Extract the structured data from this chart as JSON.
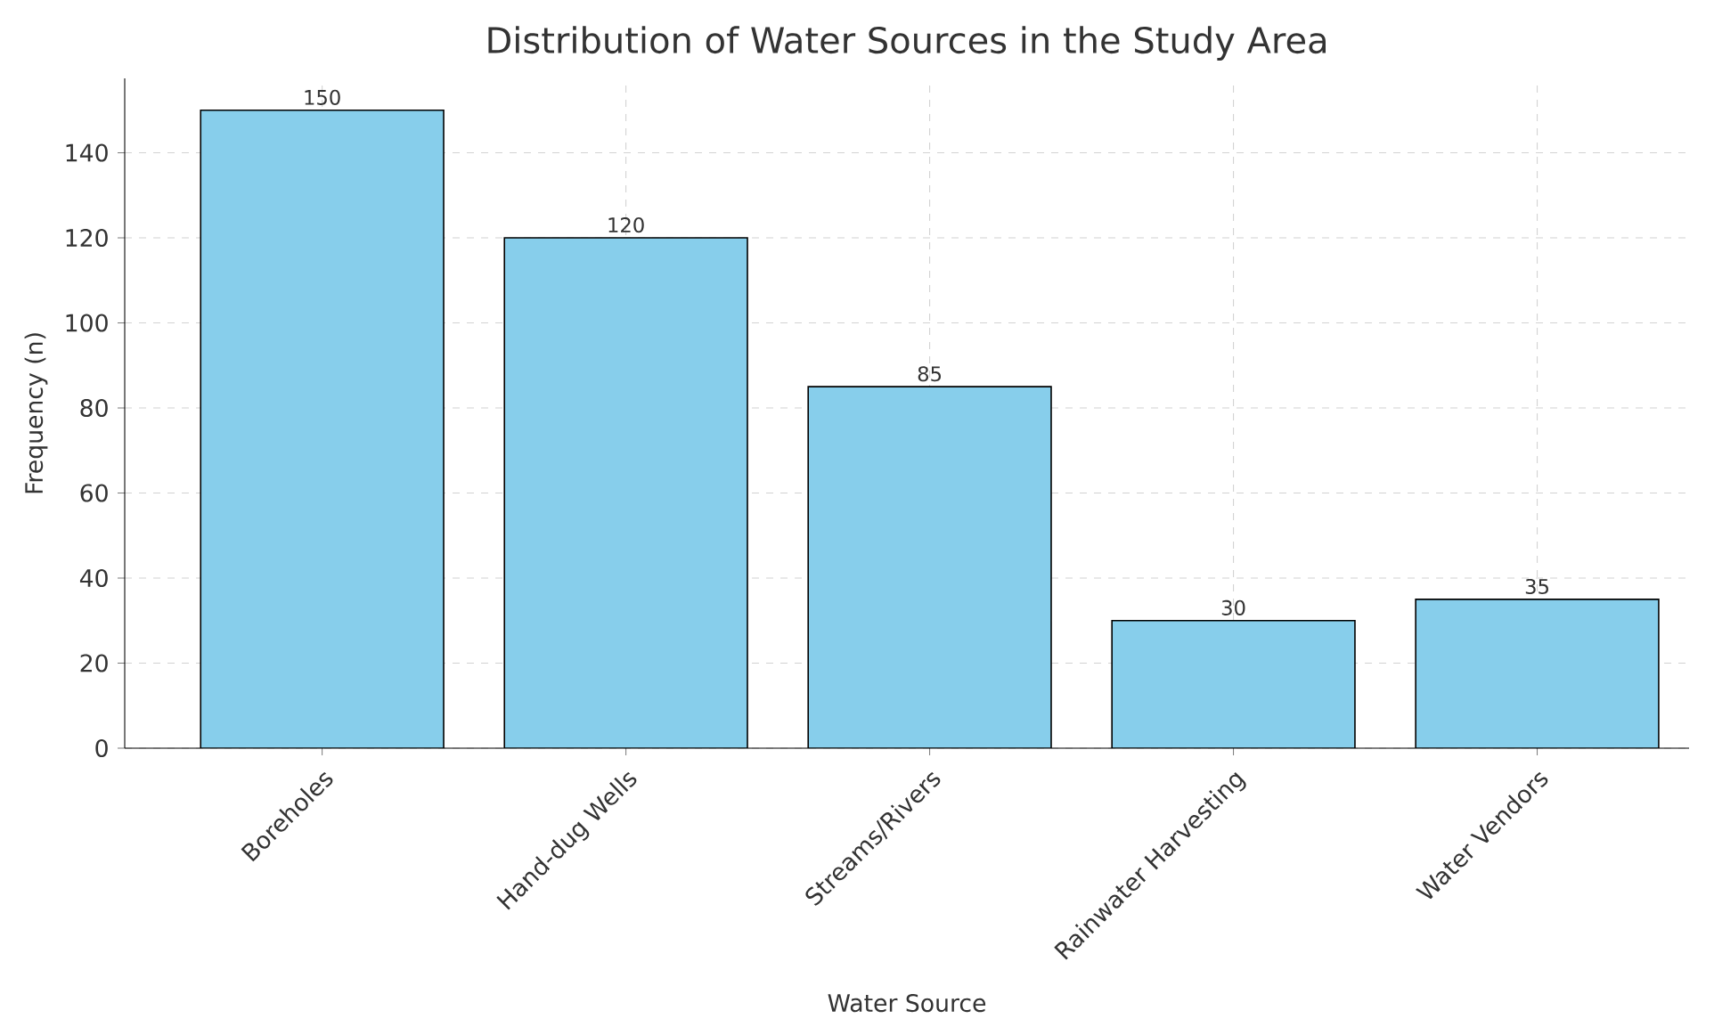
{
  "chart_data": {
    "type": "bar",
    "title": "Distribution of Water Sources in the Study Area",
    "xlabel": "Water Source",
    "ylabel": "Frequency (n)",
    "categories": [
      "Boreholes",
      "Hand-dug Wells",
      "Streams/Rivers",
      "Rainwater Harvesting",
      "Water Vendors"
    ],
    "values": [
      150,
      120,
      85,
      30,
      35
    ],
    "color": "#87ceeb",
    "ylim": [
      0,
      157.5
    ],
    "yticks": [
      0,
      20,
      40,
      60,
      80,
      100,
      120,
      140
    ],
    "grid": true,
    "data_labels": true
  }
}
